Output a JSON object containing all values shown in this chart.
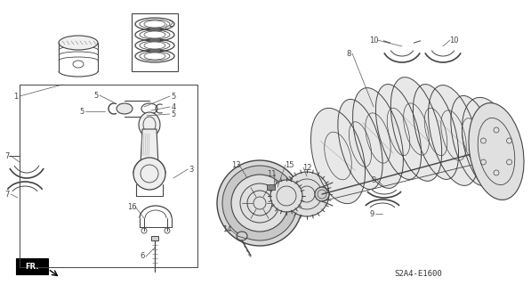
{
  "bg_color": "#ffffff",
  "line_color": "#444444",
  "diagram_code": "S2A4-E1600",
  "figsize": [
    5.97,
    3.2
  ],
  "dpi": 100
}
